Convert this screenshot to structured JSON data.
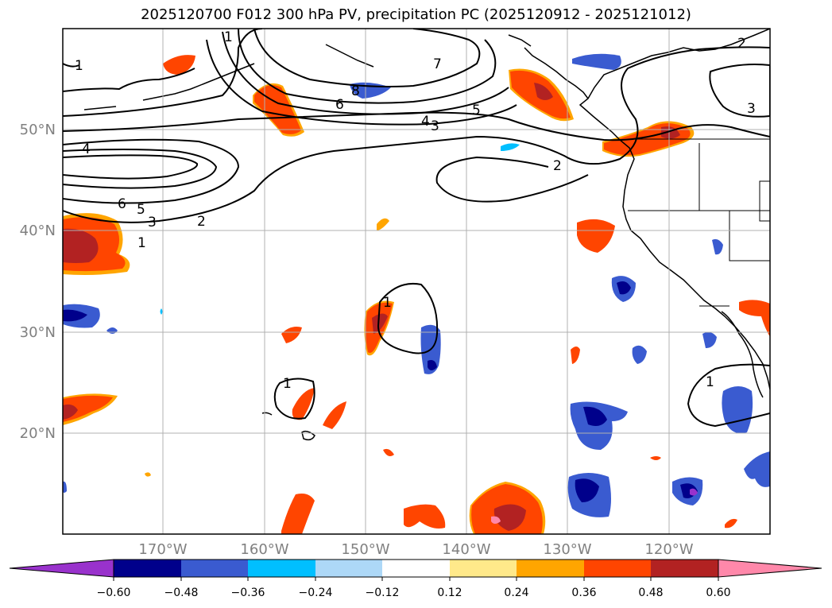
{
  "title": "2025120700 F012 300 hPa PV, precipitation PC (2025120912 - 2025121012)",
  "lat_labels": [
    "50°N",
    "40°N",
    "30°N",
    "20°N"
  ],
  "lon_labels": [
    "170°W",
    "160°W",
    "150°W",
    "140°W",
    "130°W",
    "120°W"
  ],
  "pv_contour_labels": [
    "7",
    "8",
    "6",
    "5",
    "4",
    "3",
    "2",
    "1",
    "4",
    "6",
    "5",
    "3",
    "2",
    "1",
    "1",
    "1",
    "1",
    "3",
    "1",
    "2"
  ],
  "colorbar": {
    "ticks": [
      "−0.60",
      "−0.48",
      "−0.36",
      "−0.24",
      "−0.12",
      "0.12",
      "0.24",
      "0.36",
      "0.48",
      "0.60"
    ],
    "colors": [
      "#9932cc",
      "#00008b",
      "#3a5bd0",
      "#00bfff",
      "#add8f7",
      "#ffffff",
      "#ffe98a",
      "#ffa500",
      "#ff4500",
      "#b22222",
      "#ff88aa"
    ]
  }
}
